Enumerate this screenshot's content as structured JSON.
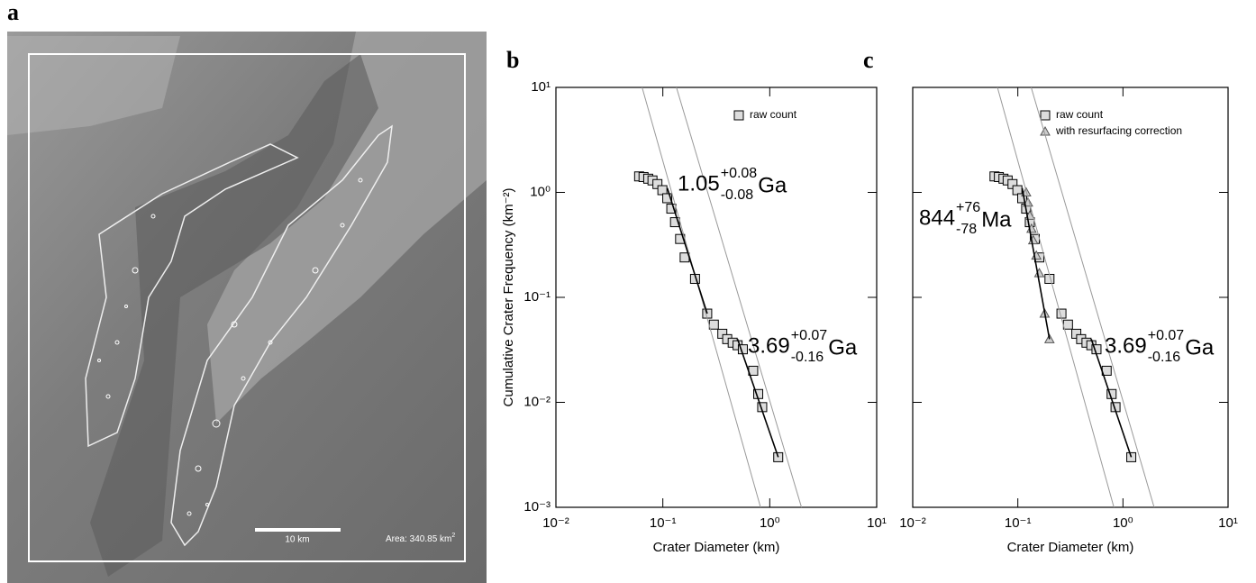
{
  "image_panel": {
    "label": "a",
    "scale_bar": "10 km",
    "area_label": "Area: 340.85 km",
    "area_exponent": "2"
  },
  "chart_data": [
    {
      "type": "scatter",
      "title": "b",
      "x_label": "Crater Diameter (km)",
      "y_label": "Cumulative Crater Frequency (km⁻²)",
      "log_x": true,
      "log_y": true,
      "xlim": [
        0.01,
        10
      ],
      "ylim": [
        0.001,
        10
      ],
      "xticks": [
        {
          "value": 0.01,
          "label": "10⁻²"
        },
        {
          "value": 0.1,
          "label": "10⁻¹"
        },
        {
          "value": 1,
          "label": "10⁰"
        },
        {
          "value": 10,
          "label": "10¹"
        }
      ],
      "yticks": [
        {
          "value": 0.001,
          "label": "10⁻³"
        },
        {
          "value": 0.01,
          "label": "10⁻²"
        },
        {
          "value": 0.1,
          "label": "10⁻¹"
        },
        {
          "value": 1,
          "label": "10⁰"
        },
        {
          "value": 10,
          "label": "10¹"
        }
      ],
      "series": [
        {
          "name": "raw count",
          "marker": "square",
          "color": "#000000",
          "x": [
            0.06,
            0.066,
            0.073,
            0.08,
            0.089,
            0.099,
            0.11,
            0.12,
            0.13,
            0.145,
            0.16,
            0.2,
            0.26,
            0.3,
            0.36,
            0.4,
            0.45,
            0.5,
            0.56,
            0.7,
            0.78,
            0.85,
            1.2
          ],
          "values": [
            1.42,
            1.4,
            1.35,
            1.3,
            1.2,
            1.05,
            0.88,
            0.7,
            0.52,
            0.36,
            0.24,
            0.15,
            0.07,
            0.055,
            0.045,
            0.04,
            0.037,
            0.035,
            0.032,
            0.02,
            0.012,
            0.009,
            0.003
          ]
        },
        {
          "marker": "line",
          "color": "#999999",
          "x": [
            0.064,
            0.82
          ],
          "values": [
            10,
            0.001
          ]
        },
        {
          "marker": "line",
          "color": "#999999",
          "x": [
            0.134,
            1.98
          ],
          "values": [
            10,
            0.001
          ]
        },
        {
          "marker": "line",
          "color": "#000000",
          "x": [
            0.11,
            0.26
          ],
          "values": [
            1.1,
            0.07
          ]
        },
        {
          "marker": "line",
          "color": "#000000",
          "x": [
            0.5,
            1.2
          ],
          "values": [
            0.04,
            0.003
          ]
        }
      ],
      "annotations": [
        {
          "text": "1.05",
          "plus": "+0.08",
          "minus": "-0.08",
          "unit": "Ga"
        },
        {
          "text": "3.69",
          "plus": "+0.07",
          "minus": "-0.16",
          "unit": "Ga"
        }
      ]
    },
    {
      "type": "scatter",
      "title": "c",
      "x_label": "Crater Diameter (km)",
      "log_x": true,
      "log_y": true,
      "xlim": [
        0.01,
        10
      ],
      "ylim": [
        0.001,
        10
      ],
      "xticks": [
        {
          "value": 0.01,
          "label": "10⁻²"
        },
        {
          "value": 0.1,
          "label": "10⁻¹"
        },
        {
          "value": 1,
          "label": "10⁰"
        },
        {
          "value": 10,
          "label": "10¹"
        }
      ],
      "yticks": [
        {
          "value": 0.001
        },
        {
          "value": 0.01
        },
        {
          "value": 0.1
        },
        {
          "value": 1
        },
        {
          "value": 10
        }
      ],
      "series": [
        {
          "name": "raw count",
          "marker": "square",
          "color": "#000000",
          "x": [
            0.06,
            0.066,
            0.073,
            0.08,
            0.089,
            0.099,
            0.11,
            0.12,
            0.13,
            0.145,
            0.16,
            0.2,
            0.26,
            0.3,
            0.36,
            0.4,
            0.45,
            0.5,
            0.56,
            0.7,
            0.78,
            0.85,
            1.2
          ],
          "values": [
            1.42,
            1.4,
            1.35,
            1.3,
            1.2,
            1.05,
            0.88,
            0.7,
            0.52,
            0.36,
            0.24,
            0.15,
            0.07,
            0.055,
            0.045,
            0.04,
            0.037,
            0.035,
            0.032,
            0.02,
            0.012,
            0.009,
            0.003
          ]
        },
        {
          "name": "with resurfacing correction",
          "marker": "triangle",
          "color": "#555555",
          "x": [
            0.12,
            0.125,
            0.13,
            0.135,
            0.14,
            0.15,
            0.16,
            0.18,
            0.2
          ],
          "values": [
            1.0,
            0.8,
            0.6,
            0.45,
            0.35,
            0.25,
            0.17,
            0.07,
            0.04
          ]
        },
        {
          "marker": "line",
          "color": "#999999",
          "x": [
            0.064,
            0.82
          ],
          "values": [
            10,
            0.001
          ]
        },
        {
          "marker": "line",
          "color": "#999999",
          "x": [
            0.134,
            1.98
          ],
          "values": [
            10,
            0.001
          ]
        },
        {
          "marker": "line",
          "color": "#000000",
          "x": [
            0.11,
            0.2
          ],
          "values": [
            1.1,
            0.04
          ]
        },
        {
          "marker": "line",
          "color": "#000000",
          "x": [
            0.5,
            1.2
          ],
          "values": [
            0.04,
            0.003
          ]
        }
      ],
      "annotations": [
        {
          "text": "844",
          "plus": "+76",
          "minus": "-78",
          "unit": "Ma"
        },
        {
          "text": "3.69",
          "plus": "+0.07",
          "minus": "-0.16",
          "unit": "Ga"
        }
      ]
    }
  ]
}
